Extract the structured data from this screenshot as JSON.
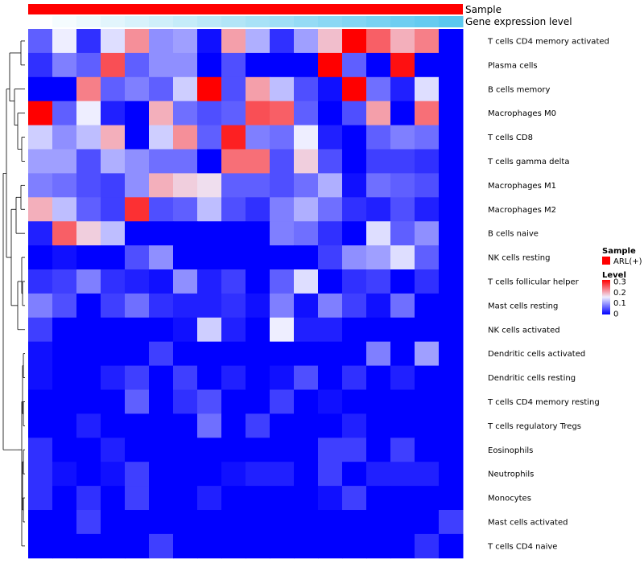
{
  "chart_data": {
    "type": "heatmap",
    "title": "",
    "annotations": [
      {
        "name": "Sample",
        "value": "ARL(+)",
        "color": "#ff0000"
      },
      {
        "name": "Gene expression level",
        "gradient_low": "#ffffff",
        "gradient_high": "#5bc8ef"
      }
    ],
    "row_labels": [
      "T cells CD4 memory activated",
      "Plasma cells",
      "B cells memory",
      "Macrophages M0",
      "T cells CD8",
      "T cells gamma delta",
      "Macrophages M1",
      "Macrophages M2",
      "B cells naive",
      "NK cells resting",
      "T cells follicular helper",
      "Mast cells resting",
      "NK cells activated",
      "Dendritic cells activated",
      "Dendritic cells resting",
      "T cells CD4 memory resting",
      "T cells regulatory  Tregs",
      "Eosinophils",
      "Neutrophils",
      "Monocytes",
      "Mast cells activated",
      "T cells CD4 naive"
    ],
    "n_columns": 18,
    "values": [
      [
        0.06,
        0.15,
        0.03,
        0.14,
        0.21,
        0.09,
        0.1,
        0.01,
        0.2,
        0.11,
        0.03,
        0.1,
        0.18,
        0.3,
        0.24,
        0.19,
        0.22,
        0.0
      ],
      [
        0.03,
        0.08,
        0.06,
        0.25,
        0.06,
        0.09,
        0.09,
        0.0,
        0.05,
        0.0,
        0.0,
        0.0,
        0.3,
        0.06,
        0.0,
        0.29,
        0.0,
        0.0
      ],
      [
        0.0,
        0.0,
        0.22,
        0.06,
        0.08,
        0.06,
        0.13,
        0.3,
        0.05,
        0.2,
        0.12,
        0.05,
        0.01,
        0.3,
        0.07,
        0.02,
        0.14,
        0.0
      ],
      [
        0.3,
        0.06,
        0.15,
        0.02,
        0.0,
        0.19,
        0.07,
        0.05,
        0.06,
        0.25,
        0.24,
        0.06,
        0.0,
        0.05,
        0.2,
        0.0,
        0.23,
        0.0
      ],
      [
        0.13,
        0.09,
        0.12,
        0.19,
        0.0,
        0.13,
        0.21,
        0.06,
        0.28,
        0.08,
        0.07,
        0.15,
        0.02,
        0.0,
        0.06,
        0.08,
        0.07,
        0.0
      ],
      [
        0.1,
        0.1,
        0.05,
        0.11,
        0.09,
        0.07,
        0.07,
        0.0,
        0.23,
        0.23,
        0.05,
        0.17,
        0.05,
        0.0,
        0.04,
        0.04,
        0.03,
        0.0
      ],
      [
        0.08,
        0.07,
        0.05,
        0.04,
        0.09,
        0.19,
        0.17,
        0.16,
        0.06,
        0.06,
        0.05,
        0.07,
        0.11,
        0.01,
        0.07,
        0.06,
        0.05,
        0.0
      ],
      [
        0.19,
        0.12,
        0.06,
        0.04,
        0.27,
        0.05,
        0.06,
        0.12,
        0.05,
        0.03,
        0.08,
        0.11,
        0.07,
        0.03,
        0.02,
        0.05,
        0.02,
        0.0
      ],
      [
        0.02,
        0.24,
        0.17,
        0.12,
        0.0,
        0.0,
        0.0,
        0.0,
        0.0,
        0.0,
        0.08,
        0.07,
        0.03,
        0.0,
        0.14,
        0.06,
        0.09,
        0.0
      ],
      [
        0.0,
        0.01,
        0.0,
        0.0,
        0.05,
        0.09,
        0.0,
        0.0,
        0.0,
        0.0,
        0.0,
        0.0,
        0.04,
        0.09,
        0.1,
        0.14,
        0.06,
        0.0
      ],
      [
        0.03,
        0.04,
        0.08,
        0.03,
        0.02,
        0.01,
        0.09,
        0.02,
        0.04,
        0.0,
        0.06,
        0.14,
        0.0,
        0.03,
        0.04,
        0.0,
        0.03,
        0.0
      ],
      [
        0.08,
        0.05,
        0.0,
        0.04,
        0.07,
        0.03,
        0.02,
        0.02,
        0.03,
        0.01,
        0.08,
        0.01,
        0.08,
        0.04,
        0.01,
        0.07,
        0.0,
        0.0
      ],
      [
        0.04,
        0.0,
        0.0,
        0.0,
        0.0,
        0.0,
        0.01,
        0.13,
        0.02,
        0.0,
        0.15,
        0.02,
        0.02,
        0.0,
        0.0,
        0.0,
        0.0,
        0.0
      ],
      [
        0.01,
        0.0,
        0.0,
        0.0,
        0.0,
        0.04,
        0.0,
        0.0,
        0.0,
        0.0,
        0.0,
        0.0,
        0.0,
        0.0,
        0.08,
        0.0,
        0.1,
        0.0
      ],
      [
        0.01,
        0.0,
        0.0,
        0.02,
        0.04,
        0.0,
        0.04,
        0.0,
        0.02,
        0.0,
        0.01,
        0.05,
        0.0,
        0.03,
        0.0,
        0.02,
        0.0,
        0.0
      ],
      [
        0.0,
        0.0,
        0.0,
        0.0,
        0.06,
        0.0,
        0.03,
        0.05,
        0.0,
        0.0,
        0.04,
        0.0,
        0.01,
        0.0,
        0.0,
        0.0,
        0.0,
        0.0
      ],
      [
        0.0,
        0.0,
        0.02,
        0.0,
        0.0,
        0.0,
        0.0,
        0.07,
        0.0,
        0.04,
        0.0,
        0.0,
        0.0,
        0.02,
        0.0,
        0.0,
        0.0,
        0.0
      ],
      [
        0.03,
        0.0,
        0.0,
        0.02,
        0.0,
        0.0,
        0.0,
        0.0,
        0.0,
        0.0,
        0.0,
        0.0,
        0.04,
        0.04,
        0.0,
        0.04,
        0.0,
        0.0
      ],
      [
        0.03,
        0.01,
        0.0,
        0.01,
        0.04,
        0.0,
        0.0,
        0.0,
        0.01,
        0.02,
        0.02,
        0.0,
        0.04,
        0.0,
        0.02,
        0.02,
        0.02,
        0.0
      ],
      [
        0.03,
        0.0,
        0.03,
        0.0,
        0.04,
        0.0,
        0.0,
        0.02,
        0.0,
        0.0,
        0.0,
        0.0,
        0.01,
        0.04,
        0.0,
        0.0,
        0.0,
        0.0
      ],
      [
        0.0,
        0.0,
        0.04,
        0.0,
        0.0,
        0.0,
        0.0,
        0.0,
        0.0,
        0.0,
        0.0,
        0.0,
        0.0,
        0.0,
        0.0,
        0.0,
        0.0,
        0.04
      ],
      [
        0.0,
        0.0,
        0.0,
        0.0,
        0.0,
        0.04,
        0.0,
        0.0,
        0.0,
        0.0,
        0.0,
        0.0,
        0.0,
        0.0,
        0.0,
        0.0,
        0.03,
        0.0
      ]
    ],
    "color_scale": {
      "stops": [
        {
          "value": 0.0,
          "color": "#0000ff"
        },
        {
          "value": 0.15,
          "color": "#eeeeff"
        },
        {
          "value": 0.3,
          "color": "#ff0000"
        }
      ]
    },
    "legend": {
      "sample_title": "Sample",
      "sample_entry": "ARL(+)",
      "level_title": "Level",
      "ticks": [
        "0.3",
        "0.2",
        "0.1",
        "0"
      ]
    }
  }
}
